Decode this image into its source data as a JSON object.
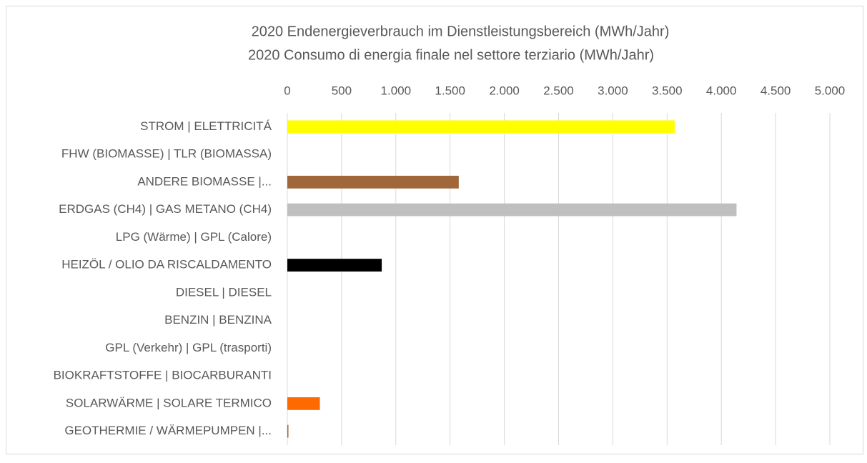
{
  "chart_data": {
    "type": "bar",
    "orientation": "horizontal",
    "title": "2020 Endenergieverbrauch im Dienstleistungsbereich (MWh/Jahr)",
    "subtitle": "2020 Consumo di energia finale nel settore terziario  (MWh/Jahr)",
    "categories": [
      "STROM | ELETTRICITÁ",
      "FHW (BIOMASSE) | TLR (BIOMASSA)",
      "ANDERE BIOMASSE |...",
      "ERDGAS (CH4) | GAS METANO (CH4)",
      "LPG (Wärme) | GPL (Calore)",
      "HEIZÖL / OLIO DA RISCALDAMENTO",
      "DIESEL | DIESEL",
      "BENZIN | BENZINA",
      "GPL (Verkehr) | GPL (trasporti)",
      "BIOKRAFTSTOFFE | BIOCARBURANTI",
      "SOLARWÄRME | SOLARE TERMICO",
      "GEOTHERMIE / WÄRMEPUMPEN |..."
    ],
    "values": [
      3570,
      0,
      1580,
      4140,
      0,
      870,
      0,
      0,
      0,
      0,
      300,
      10
    ],
    "colors": [
      "#ffff00",
      null,
      "#a0683a",
      "#bfbfbf",
      null,
      "#000000",
      null,
      null,
      null,
      null,
      "#ff6a00",
      "#a0683a"
    ],
    "xlim": [
      0,
      5000
    ],
    "xticks": [
      0,
      500,
      {
        "value": 1000,
        "label": "1.000"
      },
      {
        "value": 1500,
        "label": "1.500"
      },
      {
        "value": 2000,
        "label": "2.000"
      },
      {
        "value": 2500,
        "label": "2.500"
      },
      {
        "value": 3000,
        "label": "3.000"
      },
      {
        "value": 3500,
        "label": "3.500"
      },
      {
        "value": 4000,
        "label": "4.000"
      },
      {
        "value": 4500,
        "label": "4.500"
      },
      {
        "value": 5000,
        "label": "5.000"
      }
    ],
    "grid": true
  }
}
